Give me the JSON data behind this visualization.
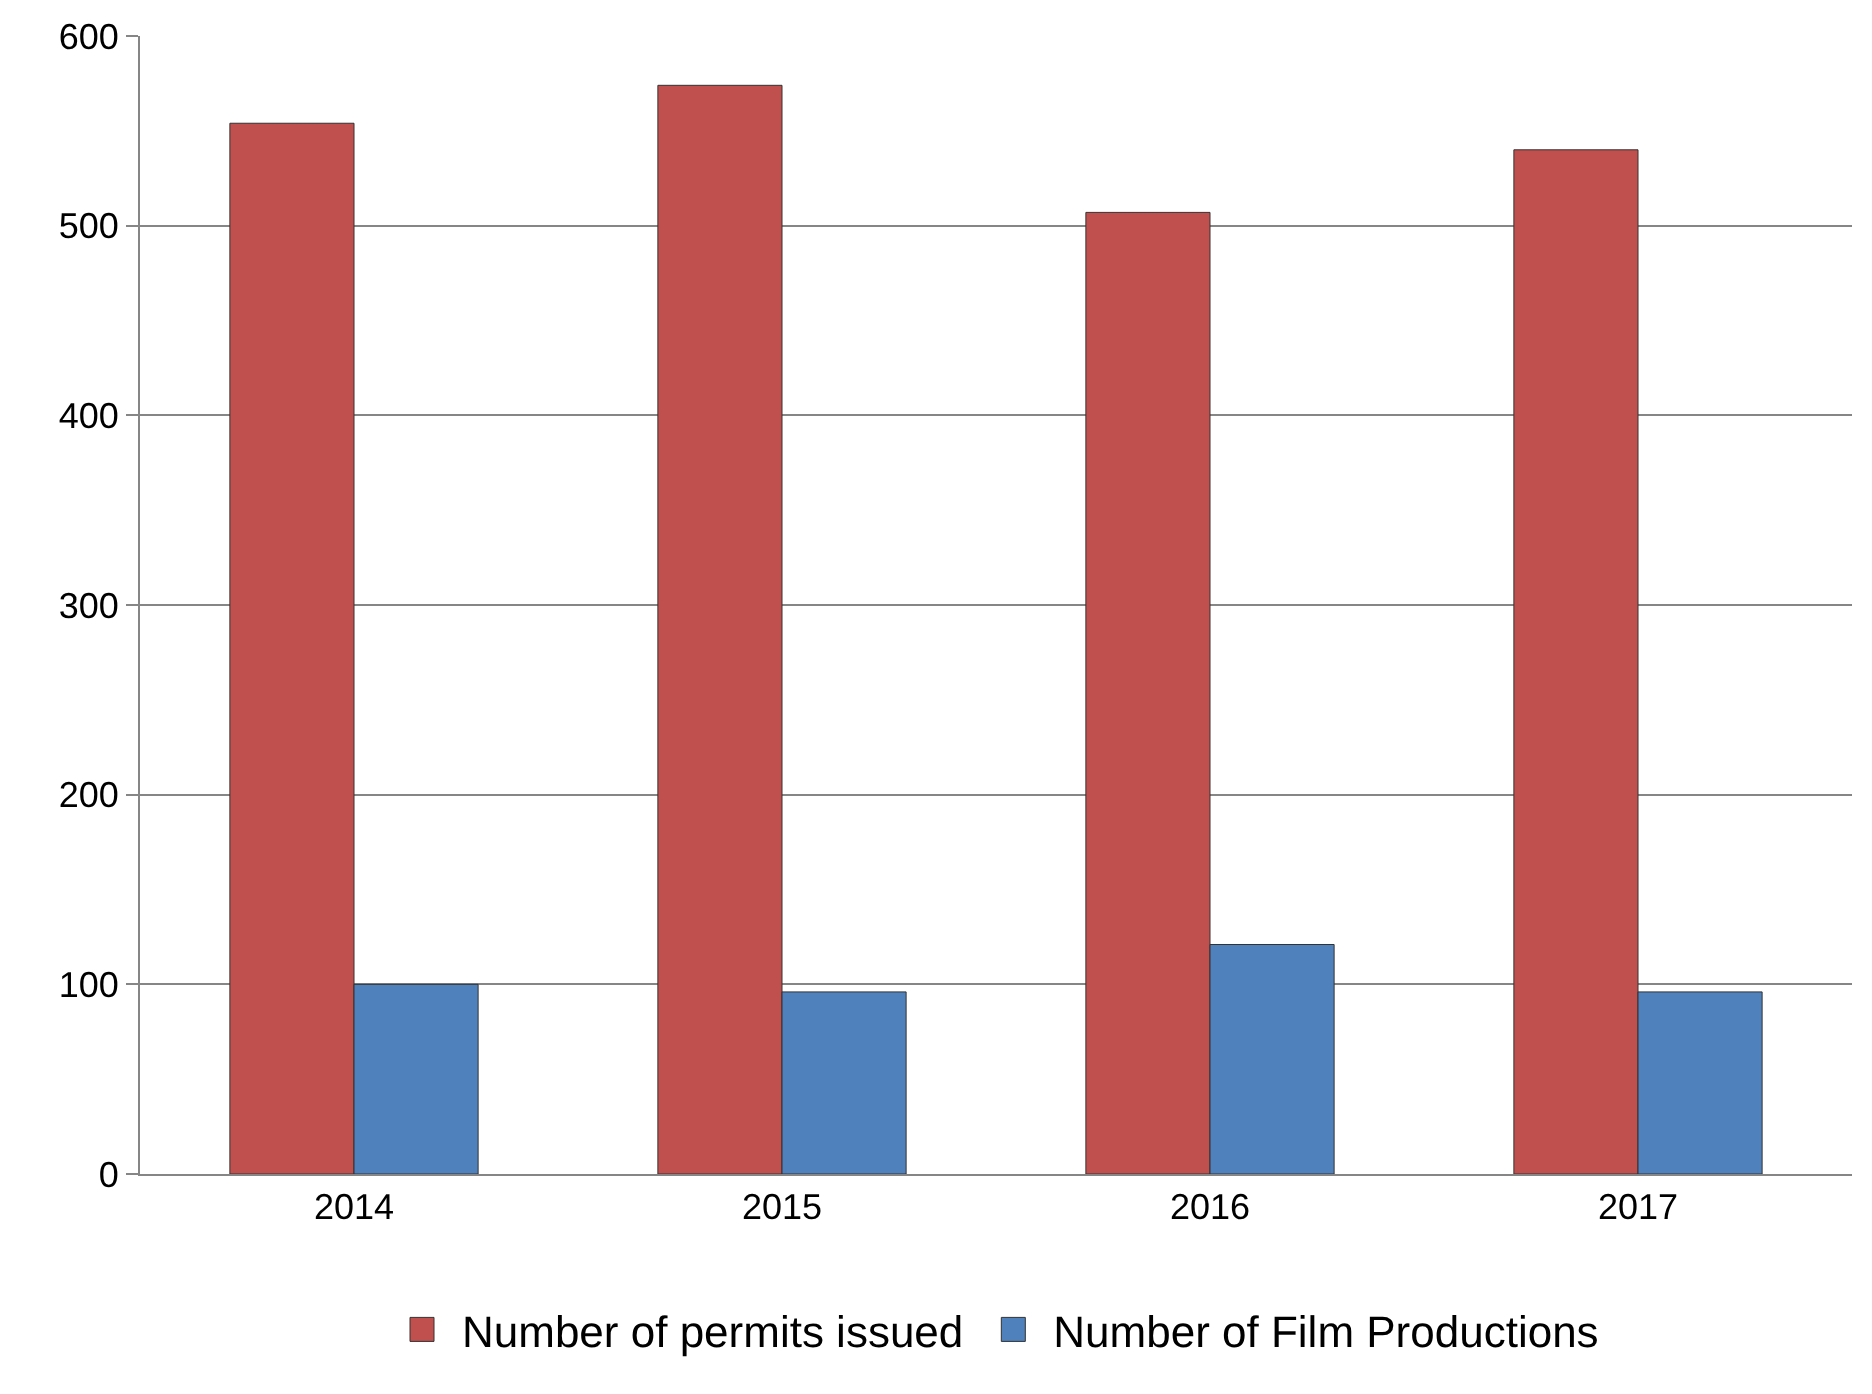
{
  "chart_data": {
    "type": "bar",
    "categories": [
      "2014",
      "2015",
      "2016",
      "2017"
    ],
    "series": [
      {
        "name": "Number of permits issued",
        "color": "#c0504d",
        "values": [
          554,
          574,
          507,
          540
        ]
      },
      {
        "name": "Number of Film Productions",
        "color": "#4f81bd",
        "values": [
          100,
          96,
          121,
          96
        ]
      }
    ],
    "ylim": [
      0,
      600
    ],
    "yticks": [
      0,
      100,
      200,
      300,
      400,
      500,
      600
    ],
    "grid": "y",
    "legend": "bottom"
  }
}
